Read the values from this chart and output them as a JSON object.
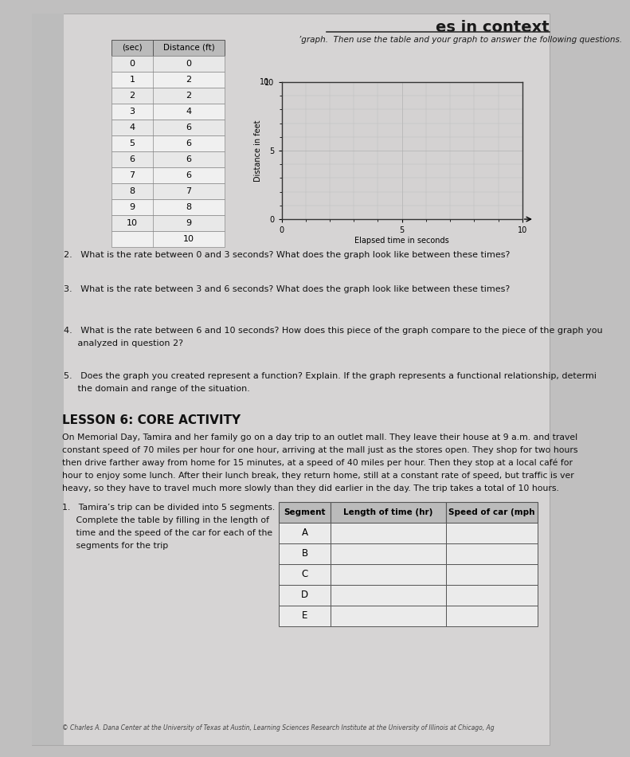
{
  "title": "es in context",
  "bg_color": "#c0bfbf",
  "page_color": "#d6d4d4",
  "table1_header": [
    "(sec)",
    "Distance (ft)"
  ],
  "table1_rows": [
    [
      "0",
      "0"
    ],
    [
      "1",
      "2"
    ],
    [
      "2",
      "2"
    ],
    [
      "3",
      "4"
    ],
    [
      "4",
      "6"
    ],
    [
      "5",
      "6"
    ],
    [
      "6",
      "6"
    ],
    [
      "7",
      "6"
    ],
    [
      "8",
      "7"
    ],
    [
      "9",
      "8"
    ],
    [
      "10",
      "9"
    ],
    [
      "",
      "10"
    ]
  ],
  "graph_intro": "graph.  Then use the table and your graph to answer the following questions.",
  "graph_xlabel": "Elapsed time in seconds",
  "graph_ylabel": "Distance in feet",
  "q2": "2.   What is the rate between 0 and 3 seconds? What does the graph look like between these times?",
  "q3": "3.   What is the rate between 3 and 6 seconds? What does the graph look like between these times?",
  "q4_line1": "4.   What is the rate between 6 and 10 seconds? How does this piece of the graph compare to the piece of the graph you",
  "q4_line2": "     analyzed in question 2?",
  "q5_line1": "5.   Does the graph you created represent a function? Explain. If the graph represents a functional relationship, determi",
  "q5_line2": "     the domain and range of the situation.",
  "lesson_title": "LESSON 6: CORE ACTIVITY",
  "lesson_p1": "On Memorial Day, Tamira and her family go on a day trip to an outlet mall. They leave their house at 9 a.m. and travel",
  "lesson_p2": "constant speed of 70 miles per hour for one hour, arriving at the mall just as the stores open. They shop for two hours",
  "lesson_p3": "then drive farther away from home for 15 minutes, at a speed of 40 miles per hour. Then they stop at a local café for",
  "lesson_p4": "hour to enjoy some lunch. After their lunch break, they return home, still at a constant rate of speed, but traffic is ver",
  "lesson_p5": "heavy, so they have to travel much more slowly than they did earlier in the day. The trip takes a total of 10 hours.",
  "q1_line1": "1.   Tamira’s trip can be divided into 5 segments.",
  "q1_line2": "     Complete the table by filling in the length of",
  "q1_line3": "     time and the speed of the car for each of the",
  "q1_line4": "     segments for the trip",
  "table2_col1": "Segment",
  "table2_col2": "Length of time (hr)",
  "table2_col3": "Speed of car (mph",
  "table2_rows": [
    "A",
    "B",
    "C",
    "D",
    "E"
  ],
  "footer": "© Charles A. Dana Center at the University of Texas at Austin, Learning Sciences Research Institute at the University of Illinois at Chicago, Ag"
}
